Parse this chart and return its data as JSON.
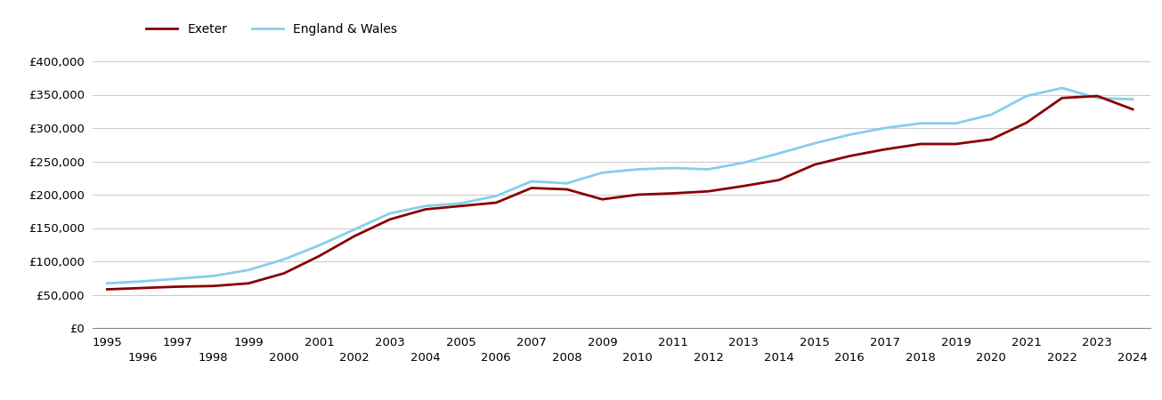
{
  "exeter_years": [
    1995,
    1996,
    1997,
    1998,
    1999,
    2000,
    2001,
    2002,
    2003,
    2004,
    2005,
    2006,
    2007,
    2008,
    2009,
    2010,
    2011,
    2012,
    2013,
    2014,
    2015,
    2016,
    2017,
    2018,
    2019,
    2020,
    2021,
    2022,
    2023,
    2024
  ],
  "exeter_values": [
    58000,
    60000,
    62000,
    63000,
    67000,
    82000,
    108000,
    138000,
    163000,
    178000,
    183000,
    188000,
    210000,
    208000,
    193000,
    200000,
    202000,
    205000,
    213000,
    222000,
    245000,
    258000,
    268000,
    276000,
    276000,
    283000,
    308000,
    345000,
    348000,
    328000
  ],
  "ew_years": [
    1995,
    1996,
    1997,
    1998,
    1999,
    2000,
    2001,
    2002,
    2003,
    2004,
    2005,
    2006,
    2007,
    2008,
    2009,
    2010,
    2011,
    2012,
    2013,
    2014,
    2015,
    2016,
    2017,
    2018,
    2019,
    2020,
    2021,
    2022,
    2023,
    2024
  ],
  "ew_values": [
    67000,
    70000,
    74000,
    78000,
    87000,
    103000,
    124000,
    148000,
    172000,
    183000,
    187000,
    198000,
    220000,
    217000,
    233000,
    238000,
    240000,
    238000,
    248000,
    262000,
    277000,
    290000,
    300000,
    307000,
    307000,
    320000,
    348000,
    360000,
    345000,
    343000
  ],
  "exeter_color": "#8B0000",
  "ew_color": "#87CEEB",
  "ylim_min": 0,
  "ylim_max": 420000,
  "ytick_step": 50000,
  "xlim_min": 1994.6,
  "xlim_max": 2024.5,
  "legend_exeter": "Exeter",
  "legend_ew": "England & Wales",
  "background_color": "#ffffff",
  "grid_color": "#cccccc",
  "line_width": 2.0,
  "odd_years": [
    1995,
    1997,
    1999,
    2001,
    2003,
    2005,
    2007,
    2009,
    2011,
    2013,
    2015,
    2017,
    2019,
    2021,
    2023
  ],
  "even_years": [
    1996,
    1998,
    2000,
    2002,
    2004,
    2006,
    2008,
    2010,
    2012,
    2014,
    2016,
    2018,
    2020,
    2022,
    2024
  ]
}
